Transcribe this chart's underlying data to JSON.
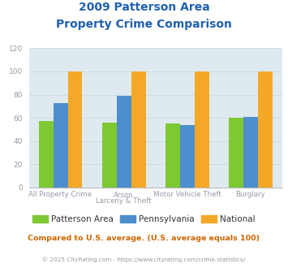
{
  "title_line1": "2009 Patterson Area",
  "title_line2": "Property Crime Comparison",
  "title_color": "#2060b0",
  "categories_line1": [
    "All Property Crime",
    "Arson",
    "Motor Vehicle Theft",
    "Burglary"
  ],
  "categories_line2": [
    "",
    "Larceny & Theft",
    "",
    ""
  ],
  "series": {
    "Patterson Area": [
      57,
      56,
      55,
      60
    ],
    "Pennsylvania": [
      73,
      79,
      54,
      61
    ],
    "National": [
      100,
      100,
      100,
      100
    ]
  },
  "colors": {
    "Patterson Area": "#7ec832",
    "Pennsylvania": "#4d8fcc",
    "National": "#f5a827"
  },
  "ylim": [
    0,
    120
  ],
  "yticks": [
    0,
    20,
    40,
    60,
    80,
    100,
    120
  ],
  "grid_color": "#c8dde8",
  "plot_bg": "#deeaf0",
  "subtitle": "Compared to U.S. average. (U.S. average equals 100)",
  "subtitle_color": "#cc6600",
  "footer": "© 2025 CityRating.com - https://www.cityrating.com/crime-statistics/",
  "footer_color": "#999999",
  "tick_color": "#9999aa",
  "bar_width": 0.23
}
